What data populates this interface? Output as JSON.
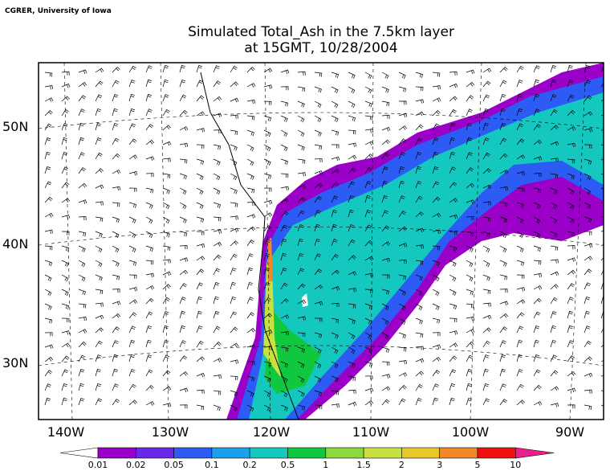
{
  "credit": "CGRER, University of Iowa",
  "title": {
    "line1": "Simulated Total_Ash in the 7.5km layer",
    "line2": "at 15GMT, 10/28/2004"
  },
  "map": {
    "lon_labels": [
      "140W",
      "130W",
      "120W",
      "110W",
      "100W",
      "90W"
    ],
    "lat_labels": [
      "50N",
      "40N",
      "30N"
    ]
  },
  "colorbar": {
    "levels": [
      0.01,
      0.02,
      0.05,
      0.1,
      0.2,
      0.5,
      1,
      1.5,
      2,
      3,
      5,
      10
    ],
    "colors": [
      "#ffffff",
      "#9a00c8",
      "#6a28e8",
      "#2c5cf4",
      "#1aa0ec",
      "#14c8c0",
      "#10c840",
      "#8cd840",
      "#c8e040",
      "#e8c828",
      "#f08828",
      "#f01010",
      "#e8208c"
    ]
  }
}
